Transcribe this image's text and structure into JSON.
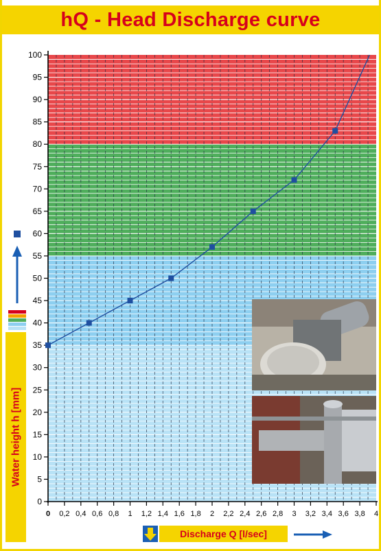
{
  "title": "hQ - Head Discharge curve",
  "colors": {
    "title_bg": "#f5d400",
    "title_text": "#d6001c",
    "zone_red": "#e8474a",
    "zone_green": "#4fae5c",
    "zone_blue": "#8dcff0",
    "zone_lightblue": "#b8e2f6",
    "curve": "#1f4fa0"
  },
  "chart_data": {
    "type": "line",
    "title": "hQ - Head Discharge curve",
    "xlabel": "Discharge Q [l/sec]",
    "ylabel": "Water height h [mm]",
    "xlim": [
      0,
      4
    ],
    "ylim": [
      0,
      100
    ],
    "x_ticks": [
      "0",
      "0,2",
      "0,4",
      "0,6",
      "0,8",
      "1",
      "1,2",
      "1,4",
      "1,6",
      "1,8",
      "2",
      "2,2",
      "2,4",
      "2,6",
      "2,8",
      "3",
      "3,2",
      "3,4",
      "3,6",
      "3,8",
      "4"
    ],
    "y_ticks": [
      "0",
      "5",
      "10",
      "15",
      "20",
      "25",
      "30",
      "35",
      "40",
      "45",
      "50",
      "55",
      "60",
      "65",
      "70",
      "75",
      "80",
      "85",
      "90",
      "95",
      "100"
    ],
    "zones": [
      {
        "from": 0,
        "to": 35,
        "color": "#b8e2f6"
      },
      {
        "from": 35,
        "to": 55,
        "color": "#8dcff0"
      },
      {
        "from": 55,
        "to": 80,
        "color": "#4fae5c"
      },
      {
        "from": 80,
        "to": 100,
        "color": "#e8474a"
      }
    ],
    "grid": true,
    "series": [
      {
        "x": [
          0,
          0.5,
          1,
          1.5,
          2,
          2.5,
          3,
          3.5,
          3.92
        ],
        "y": [
          35,
          40,
          45,
          50,
          57,
          65,
          72,
          83,
          100
        ],
        "markers": [
          true,
          true,
          true,
          true,
          true,
          true,
          true,
          true,
          false
        ]
      }
    ]
  }
}
